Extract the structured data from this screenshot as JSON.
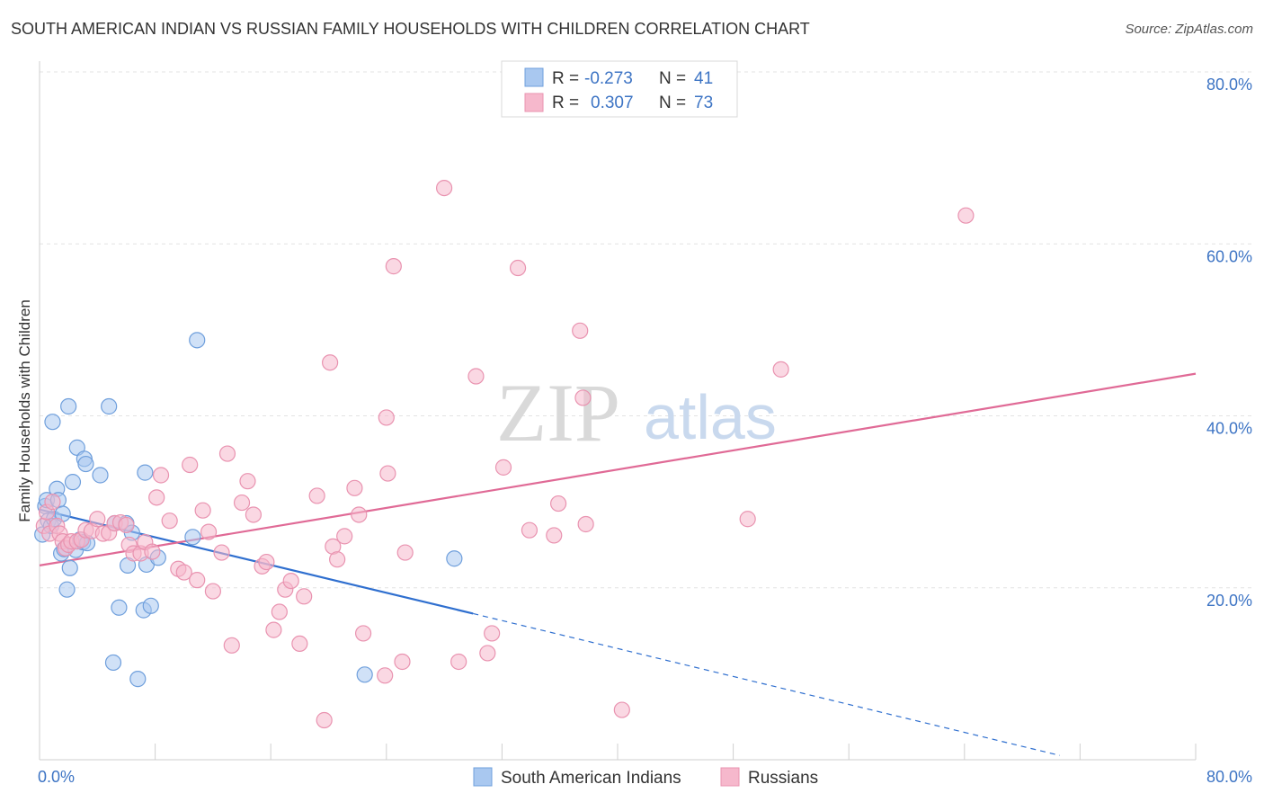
{
  "title": "SOUTH AMERICAN INDIAN VS RUSSIAN FAMILY HOUSEHOLDS WITH CHILDREN CORRELATION CHART",
  "source": "Source: ZipAtlas.com",
  "watermark": {
    "zip": "ZIP",
    "atlas": "atlas"
  },
  "colors": {
    "blue_fill": "#a9c8f0",
    "blue_stroke": "#6f9fdc",
    "blue_line": "#2f6fcf",
    "pink_fill": "#f6b8cc",
    "pink_stroke": "#e993b0",
    "pink_line": "#e06a96",
    "tick_label": "#3d74c4",
    "grid": "#e3e3e3"
  },
  "legend": {
    "rows": [
      {
        "r_label": "R =",
        "r_value": "-0.273",
        "n_label": "N =",
        "n_value": "41"
      },
      {
        "r_label": "R =",
        "r_value": "0.307",
        "n_label": "N =",
        "n_value": "73"
      }
    ]
  },
  "chart_data": {
    "type": "scatter",
    "title": "SOUTH AMERICAN INDIAN VS RUSSIAN FAMILY HOUSEHOLDS WITH CHILDREN CORRELATION CHART",
    "xlabel": "",
    "ylabel": "Family Households with Children",
    "xlim": [
      0,
      80
    ],
    "ylim": [
      0,
      80
    ],
    "x_tick_labels": [
      "0.0%",
      "80.0%"
    ],
    "y_ticks": [
      20,
      40,
      60,
      80
    ],
    "y_tick_labels": [
      "20.0%",
      "40.0%",
      "60.0%",
      "80.0%"
    ],
    "grid": true,
    "legend_position": "top-center",
    "series": [
      {
        "name": "South American Indians",
        "r": -0.273,
        "n": 41,
        "trend": {
          "x0": 0,
          "y0": 29.1,
          "x1": 30,
          "y1": 17.0,
          "dashed_to_x": 70.6,
          "dashed_to_y": 0.5
        },
        "points": [
          [
            0.2,
            26.2
          ],
          [
            0.4,
            29.5
          ],
          [
            0.5,
            30.2
          ],
          [
            0.6,
            27.8
          ],
          [
            0.8,
            27.2
          ],
          [
            0.9,
            39.3
          ],
          [
            1.0,
            28.0
          ],
          [
            1.2,
            31.5
          ],
          [
            1.3,
            30.2
          ],
          [
            1.6,
            28.6
          ],
          [
            1.5,
            24.0
          ],
          [
            1.7,
            24.5
          ],
          [
            1.9,
            19.8
          ],
          [
            2.0,
            41.1
          ],
          [
            2.1,
            22.3
          ],
          [
            2.3,
            32.3
          ],
          [
            2.5,
            24.4
          ],
          [
            2.6,
            36.3
          ],
          [
            2.8,
            25.6
          ],
          [
            3.0,
            25.3
          ],
          [
            3.1,
            35.0
          ],
          [
            3.3,
            25.2
          ],
          [
            3.2,
            34.4
          ],
          [
            4.2,
            33.1
          ],
          [
            4.8,
            41.1
          ],
          [
            5.1,
            11.3
          ],
          [
            5.2,
            27.5
          ],
          [
            5.5,
            17.7
          ],
          [
            6.0,
            27.5
          ],
          [
            6.1,
            22.6
          ],
          [
            6.4,
            26.4
          ],
          [
            6.8,
            9.4
          ],
          [
            7.2,
            17.4
          ],
          [
            7.3,
            33.4
          ],
          [
            7.4,
            22.7
          ],
          [
            7.7,
            17.9
          ],
          [
            8.2,
            23.5
          ],
          [
            10.6,
            25.9
          ],
          [
            10.9,
            48.8
          ],
          [
            22.5,
            9.9
          ],
          [
            28.7,
            23.4
          ]
        ]
      },
      {
        "name": "Russians",
        "r": 0.307,
        "n": 73,
        "trend": {
          "x0": 0,
          "y0": 22.6,
          "x1": 80,
          "y1": 44.9
        },
        "points": [
          [
            0.3,
            27.2
          ],
          [
            0.5,
            28.8
          ],
          [
            0.7,
            26.3
          ],
          [
            0.9,
            30.0
          ],
          [
            1.2,
            27.2
          ],
          [
            1.4,
            26.3
          ],
          [
            1.6,
            25.4
          ],
          [
            1.8,
            24.6
          ],
          [
            2.0,
            25.0
          ],
          [
            2.2,
            25.4
          ],
          [
            2.6,
            25.4
          ],
          [
            2.9,
            25.6
          ],
          [
            3.2,
            26.7
          ],
          [
            3.6,
            26.6
          ],
          [
            4.0,
            28.0
          ],
          [
            4.4,
            26.3
          ],
          [
            4.8,
            26.4
          ],
          [
            5.2,
            27.5
          ],
          [
            5.6,
            27.6
          ],
          [
            6.0,
            27.3
          ],
          [
            6.2,
            25.0
          ],
          [
            6.5,
            24.0
          ],
          [
            7.0,
            24.0
          ],
          [
            7.3,
            25.3
          ],
          [
            7.8,
            24.2
          ],
          [
            8.1,
            30.5
          ],
          [
            8.4,
            33.1
          ],
          [
            9.0,
            27.8
          ],
          [
            9.6,
            22.2
          ],
          [
            10.0,
            21.8
          ],
          [
            10.4,
            34.3
          ],
          [
            10.9,
            20.9
          ],
          [
            11.3,
            29.0
          ],
          [
            11.7,
            26.5
          ],
          [
            12.0,
            19.6
          ],
          [
            12.6,
            24.1
          ],
          [
            13.3,
            13.3
          ],
          [
            13.0,
            35.6
          ],
          [
            14.0,
            29.9
          ],
          [
            14.4,
            32.4
          ],
          [
            14.8,
            28.5
          ],
          [
            15.4,
            22.5
          ],
          [
            15.7,
            23.0
          ],
          [
            16.2,
            15.1
          ],
          [
            16.6,
            17.2
          ],
          [
            17.0,
            19.8
          ],
          [
            17.4,
            20.8
          ],
          [
            18.0,
            13.5
          ],
          [
            18.3,
            19.0
          ],
          [
            19.2,
            30.7
          ],
          [
            19.7,
            4.6
          ],
          [
            20.1,
            46.2
          ],
          [
            20.3,
            24.8
          ],
          [
            20.6,
            23.3
          ],
          [
            21.1,
            26.0
          ],
          [
            21.8,
            31.6
          ],
          [
            22.1,
            28.5
          ],
          [
            22.4,
            14.7
          ],
          [
            23.9,
            9.8
          ],
          [
            24.0,
            39.8
          ],
          [
            24.1,
            33.3
          ],
          [
            24.5,
            57.4
          ],
          [
            25.1,
            11.4
          ],
          [
            25.3,
            24.1
          ],
          [
            28.0,
            66.5
          ],
          [
            29.0,
            11.4
          ],
          [
            30.2,
            44.6
          ],
          [
            31.0,
            12.4
          ],
          [
            31.3,
            14.7
          ],
          [
            32.1,
            34.0
          ],
          [
            33.1,
            57.2
          ],
          [
            33.9,
            26.7
          ],
          [
            35.9,
            29.8
          ]
        ],
        "points_extra": [
          [
            35.6,
            26.1
          ],
          [
            37.4,
            49.9
          ],
          [
            37.6,
            42.1
          ],
          [
            37.8,
            27.4
          ],
          [
            40.3,
            5.8
          ],
          [
            49.0,
            28.0
          ],
          [
            51.3,
            45.4
          ],
          [
            64.1,
            63.3
          ]
        ]
      }
    ]
  }
}
